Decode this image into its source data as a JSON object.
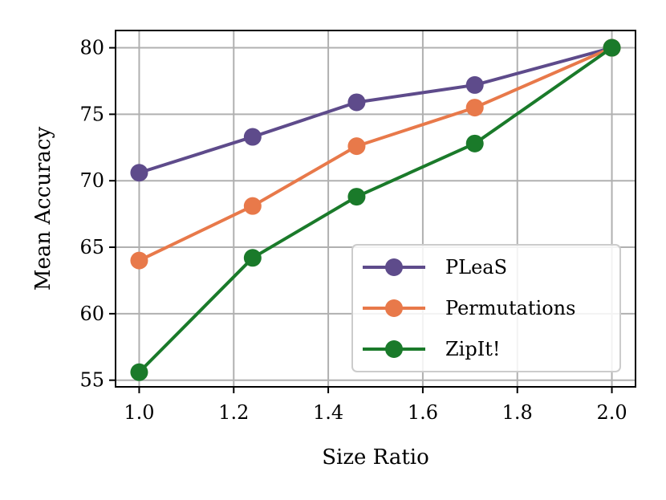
{
  "chart_data": {
    "type": "line",
    "title": "",
    "xlabel": "Size Ratio",
    "ylabel": "Mean Accuracy",
    "xlim": [
      0.95,
      2.05
    ],
    "ylim": [
      54.5,
      81.3
    ],
    "xticks": [
      1.0,
      1.2,
      1.4,
      1.6,
      1.8,
      2.0
    ],
    "xtick_labels": [
      "1.0",
      "1.2",
      "1.4",
      "1.6",
      "1.8",
      "2.0"
    ],
    "yticks": [
      55,
      60,
      65,
      70,
      75,
      80
    ],
    "ytick_labels": [
      "55",
      "60",
      "65",
      "70",
      "75",
      "80"
    ],
    "grid": true,
    "legend_position": "lower-right",
    "x": [
      1.0,
      1.24,
      1.46,
      1.71,
      2.0
    ],
    "series": [
      {
        "name": "PLeaS",
        "color": "#5e4b8b",
        "values": [
          70.6,
          73.3,
          75.9,
          77.2,
          80.0
        ]
      },
      {
        "name": "Permutations",
        "color": "#e8794a",
        "values": [
          64.0,
          68.1,
          72.6,
          75.5,
          80.0
        ]
      },
      {
        "name": "ZipIt!",
        "color": "#1a7a2a",
        "values": [
          55.6,
          64.2,
          68.8,
          72.8,
          80.0
        ]
      }
    ]
  }
}
